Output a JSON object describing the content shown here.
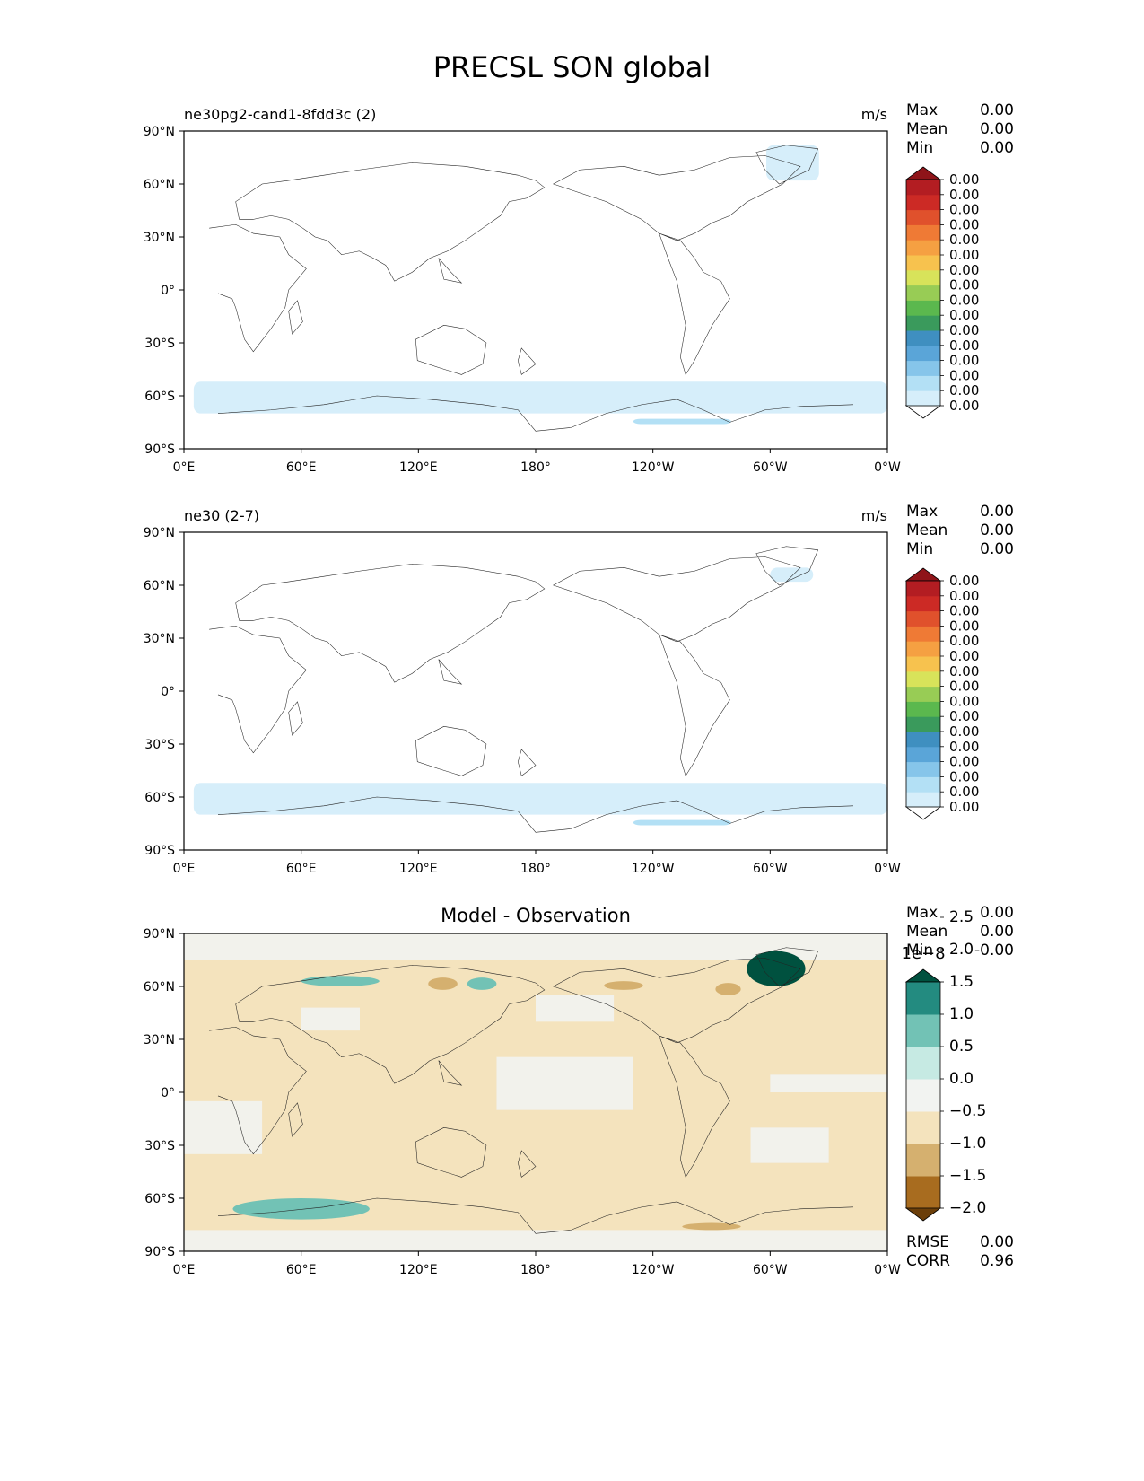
{
  "figure": {
    "title": "PRECSL SON global"
  },
  "chart_data": [
    {
      "type": "heatmap",
      "title_left": "ne30pg2-cand1-8fdd3c (2)",
      "units": "m/s",
      "stats": [
        {
          "label": "Max",
          "value": "0.00"
        },
        {
          "label": "Mean",
          "value": "0.00"
        },
        {
          "label": "Min",
          "value": "0.00"
        }
      ],
      "x_ticks": [
        "0°E",
        "60°E",
        "120°E",
        "180°",
        "120°W",
        "60°W",
        "0°W"
      ],
      "y_ticks": [
        "90°N",
        "60°N",
        "30°N",
        "0°",
        "30°S",
        "60°S",
        "90°S"
      ],
      "xlim": [
        0,
        360
      ],
      "ylim": [
        -90,
        90
      ],
      "colorbar": {
        "colors": [
          "#ffffff",
          "#d6eefa",
          "#b3e0f5",
          "#86c5ea",
          "#5aa5d8",
          "#3f8fc0",
          "#3a9a5c",
          "#5bb84e",
          "#98cc55",
          "#d8e35a",
          "#f7c24e",
          "#f5a042",
          "#ef7a35",
          "#e0512c",
          "#cc2a25",
          "#b31d22",
          "#8f1419"
        ],
        "tick_labels": [
          "0.00",
          "0.00",
          "0.00",
          "0.00",
          "0.00",
          "0.00",
          "0.00",
          "0.00",
          "0.00",
          "0.00",
          "0.00",
          "0.00",
          "0.00",
          "0.00",
          "0.00",
          "0.00"
        ]
      },
      "precip_regions": [
        {
          "name": "southern ocean band",
          "lon": [
            5,
            360
          ],
          "lat": [
            -70,
            -52
          ],
          "level": 1
        },
        {
          "name": "greenland",
          "lon": [
            298,
            325
          ],
          "lat": [
            62,
            82
          ],
          "level": 1
        },
        {
          "name": "amundsen sea",
          "lon": [
            230,
            280
          ],
          "lat": [
            -76,
            -73
          ],
          "level": 2
        }
      ]
    },
    {
      "type": "heatmap",
      "title_left": "ne30 (2-7)",
      "units": "m/s",
      "stats": [
        {
          "label": "Max",
          "value": "0.00"
        },
        {
          "label": "Mean",
          "value": "0.00"
        },
        {
          "label": "Min",
          "value": "0.00"
        }
      ],
      "x_ticks": [
        "0°E",
        "60°E",
        "120°E",
        "180°",
        "120°W",
        "60°W",
        "0°W"
      ],
      "y_ticks": [
        "90°N",
        "60°N",
        "30°N",
        "0°",
        "30°S",
        "60°S",
        "90°S"
      ],
      "xlim": [
        0,
        360
      ],
      "ylim": [
        -90,
        90
      ],
      "colorbar": {
        "colors": [
          "#ffffff",
          "#d6eefa",
          "#b3e0f5",
          "#86c5ea",
          "#5aa5d8",
          "#3f8fc0",
          "#3a9a5c",
          "#5bb84e",
          "#98cc55",
          "#d8e35a",
          "#f7c24e",
          "#f5a042",
          "#ef7a35",
          "#e0512c",
          "#cc2a25",
          "#b31d22",
          "#8f1419"
        ],
        "tick_labels": [
          "0.00",
          "0.00",
          "0.00",
          "0.00",
          "0.00",
          "0.00",
          "0.00",
          "0.00",
          "0.00",
          "0.00",
          "0.00",
          "0.00",
          "0.00",
          "0.00",
          "0.00",
          "0.00"
        ]
      },
      "precip_regions": [
        {
          "name": "southern ocean band",
          "lon": [
            5,
            360
          ],
          "lat": [
            -70,
            -52
          ],
          "level": 1
        },
        {
          "name": "greenland",
          "lon": [
            300,
            322
          ],
          "lat": [
            62,
            70
          ],
          "level": 1
        },
        {
          "name": "amundsen sea",
          "lon": [
            230,
            280
          ],
          "lat": [
            -76,
            -73
          ],
          "level": 2
        }
      ]
    },
    {
      "type": "heatmap",
      "title_center": "Model - Observation",
      "stats": [
        {
          "label": "Max",
          "value": "0.00"
        },
        {
          "label": "Mean",
          "value": "0.00"
        },
        {
          "label": "Min",
          "value": "-0.00"
        }
      ],
      "bottom_stats": [
        {
          "label": "RMSE",
          "value": "0.00"
        },
        {
          "label": "CORR",
          "value": "0.96"
        }
      ],
      "x_ticks": [
        "0°E",
        "60°E",
        "120°E",
        "180°",
        "120°W",
        "60°W",
        "0°W"
      ],
      "y_ticks": [
        "90°N",
        "60°N",
        "30°N",
        "0°",
        "30°S",
        "60°S",
        "90°S"
      ],
      "xlim": [
        0,
        360
      ],
      "ylim": [
        -90,
        90
      ],
      "colorbar": {
        "offset_text": "1e−8",
        "colors": [
          "#6b3e09",
          "#a86c1f",
          "#d5b06f",
          "#f4e3bd",
          "#f2f3f1",
          "#c6eae3",
          "#72c2b5",
          "#238b80",
          "#00513f"
        ],
        "tick_labels": [
          "−2.0",
          "−1.5",
          "−1.0",
          "−0.5",
          "0.0",
          "0.5",
          "1.0",
          "1.5",
          "2.0",
          "2.5"
        ]
      },
      "diff_regions": [
        {
          "name": "greenland positive",
          "lon": [
            288,
            318
          ],
          "lat": [
            60,
            80
          ],
          "value": 2.2
        },
        {
          "name": "south ocean positive",
          "lon": [
            25,
            95
          ],
          "lat": [
            -72,
            -60
          ],
          "value": 0.7
        },
        {
          "name": "siberia positive",
          "lon": [
            60,
            100
          ],
          "lat": [
            60,
            66
          ],
          "value": 0.6
        },
        {
          "name": "north pacific positive",
          "lon": [
            145,
            160
          ],
          "lat": [
            58,
            65
          ],
          "value": 0.7
        },
        {
          "name": "labrador negative",
          "lon": [
            272,
            285
          ],
          "lat": [
            55,
            62
          ],
          "value": -1.2
        },
        {
          "name": "alaska negative",
          "lon": [
            215,
            235
          ],
          "lat": [
            58,
            63
          ],
          "value": -1.2
        },
        {
          "name": "central asia negative",
          "lon": [
            125,
            140
          ],
          "lat": [
            58,
            65
          ],
          "value": -1.0
        },
        {
          "name": "west antarctic negative",
          "lon": [
            255,
            285
          ],
          "lat": [
            -78,
            -74
          ],
          "value": -1.3
        }
      ],
      "background_value": -0.4
    }
  ]
}
